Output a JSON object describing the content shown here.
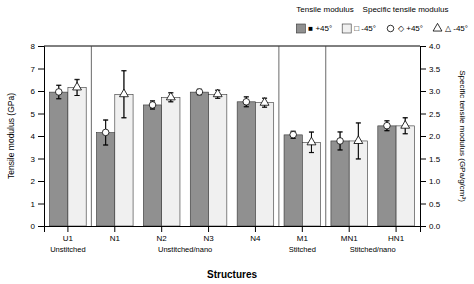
{
  "chart_data": {
    "type": "bar",
    "categories": [
      "U1",
      "N1",
      "N2",
      "N3",
      "N4",
      "M1",
      "MN1",
      "HN1"
    ],
    "groups": [
      {
        "label": "Unstitched",
        "categories": [
          "U1"
        ]
      },
      {
        "label": "Unstitched/nano",
        "categories": [
          "N1",
          "N2",
          "N3",
          "N4"
        ]
      },
      {
        "label": "Stitched",
        "categories": [
          "M1"
        ]
      },
      {
        "label": "Stitched/nano",
        "categories": [
          "MN1",
          "HN1"
        ]
      }
    ],
    "xlabel": "Structures",
    "ylabel": "Tensile modulus (GPa)",
    "y2label": "Specific tensile modulus (GPa/g/cm³)",
    "annotations": [
      "Tensile modulus    Specific tensile modulus"
    ],
    "series": [
      {
        "name": "■ +45°",
        "type": "bar",
        "color": "#909090",
        "values": [
          5.95,
          4.15,
          5.38,
          5.95,
          5.52,
          4.05,
          3.78,
          4.45
        ],
        "errors": [
          0.3,
          0.55,
          0.18,
          0.12,
          0.22,
          0.15,
          0.4,
          0.22
        ]
      },
      {
        "name": "□ -45°",
        "type": "bar",
        "color": "#f0f0f0",
        "values": [
          6.15,
          5.85,
          5.72,
          5.85,
          5.48,
          3.72,
          3.78,
          4.45
        ],
        "errors": [
          0.35,
          1.05,
          0.2,
          0.18,
          0.2,
          0.45,
          0.8,
          0.35
        ]
      },
      {
        "name": "◇ +45°",
        "type": "scatter",
        "marker": "circle",
        "axis": "y2",
        "values": [
          2.98,
          2.08,
          2.69,
          2.98,
          2.76,
          2.03,
          1.89,
          2.23
        ],
        "errors": [
          0.15,
          0.28,
          0.09,
          0.06,
          0.11,
          0.08,
          0.2,
          0.11
        ]
      },
      {
        "name": "△ -45°",
        "type": "scatter",
        "marker": "triangle",
        "axis": "y2",
        "values": [
          3.08,
          2.93,
          2.86,
          2.93,
          2.74,
          1.86,
          1.89,
          2.23
        ],
        "errors": [
          0.18,
          0.52,
          0.1,
          0.09,
          0.1,
          0.23,
          0.4,
          0.18
        ]
      }
    ],
    "ylim": [
      0,
      8
    ],
    "yticks": [
      0,
      1,
      2,
      3,
      4,
      5,
      6,
      7,
      8
    ],
    "y2lim": [
      0,
      4
    ],
    "y2ticks": [
      {
        "value": 0,
        "label": "0.0"
      },
      0.5,
      {
        "value": 1.0,
        "label": "1.0"
      },
      1.5,
      {
        "value": 2.0,
        "label": "2.0"
      },
      2.5,
      {
        "value": 3.0,
        "label": "3.0"
      },
      3.5,
      {
        "value": 4.0,
        "label": "4.0"
      }
    ],
    "legend": "upper right"
  }
}
